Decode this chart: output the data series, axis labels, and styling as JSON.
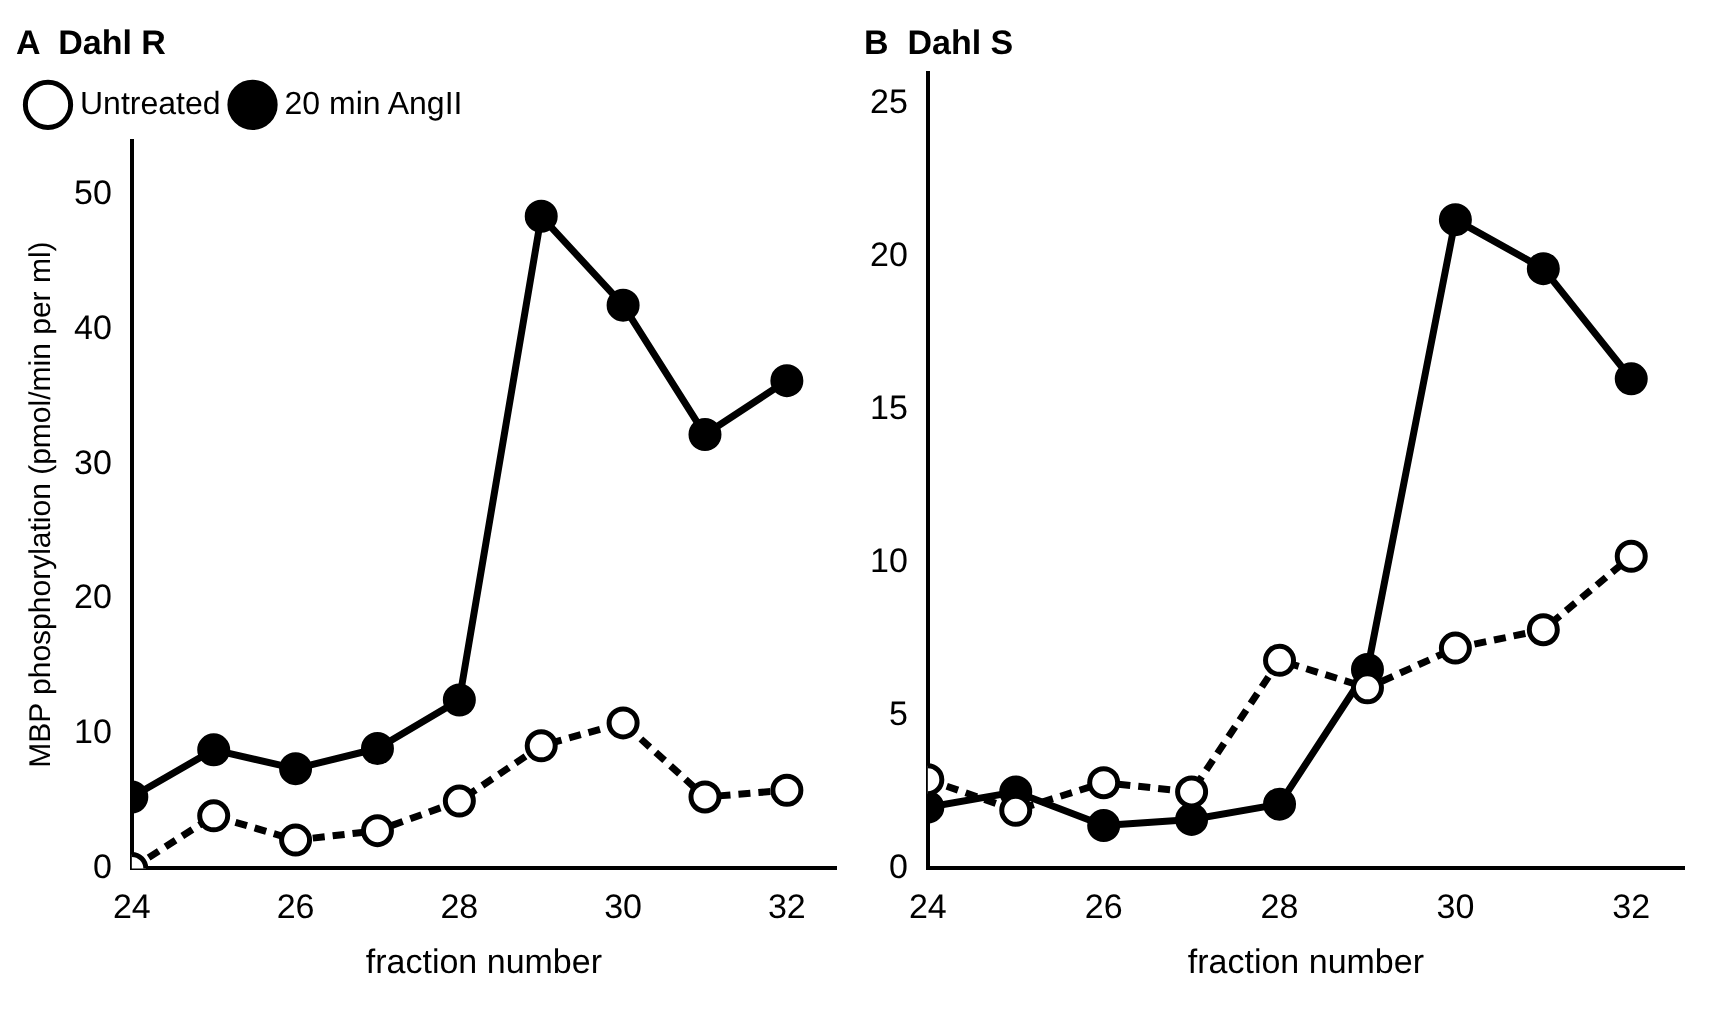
{
  "chart_data": [
    {
      "type": "line",
      "title": "A  Dahl R",
      "xlabel": "fraction number",
      "ylabel": "MBP phosphorylation (pmol/min per ml)",
      "x": [
        24,
        25,
        26,
        27,
        28,
        29,
        30,
        31,
        32
      ],
      "xlim": [
        24,
        32.6
      ],
      "xticks": [
        24,
        26,
        28,
        30,
        32
      ],
      "ylim": [
        0,
        54
      ],
      "yticks": [
        0,
        10,
        20,
        30,
        40,
        50
      ],
      "grid": false,
      "legend": "top left",
      "marker": "circle",
      "series": [
        {
          "name": "Untreated",
          "color": "#000000",
          "line_style": "dashed",
          "values": [
            0,
            3.9,
            2.1,
            2.8,
            5.0,
            9.1,
            10.8,
            5.3,
            5.8
          ]
        },
        {
          "name": "20 min AngII",
          "color": "#000000",
          "line_style": "solid",
          "values": [
            5.3,
            8.8,
            7.4,
            8.9,
            12.5,
            48.4,
            41.8,
            32.2,
            36.2
          ]
        }
      ]
    },
    {
      "type": "line",
      "title": "B  Dahl S",
      "xlabel": "fraction number",
      "x": [
        24,
        25,
        26,
        27,
        28,
        29,
        30,
        31,
        32
      ],
      "xlim": [
        24,
        32.6
      ],
      "xticks": [
        24,
        26,
        28,
        30,
        32
      ],
      "ylim": [
        0,
        26
      ],
      "yticks": [
        0,
        5,
        10,
        15,
        20,
        25
      ],
      "grid": false,
      "legend": false,
      "marker": "circle",
      "series": [
        {
          "color": "#000000",
          "line_style": "dashed",
          "values": [
            2.9,
            1.9,
            2.8,
            2.5,
            6.8,
            5.9,
            7.2,
            7.8,
            10.2
          ]
        },
        {
          "color": "#000000",
          "line_style": "solid",
          "values": [
            2.0,
            2.5,
            1.4,
            1.6,
            2.1,
            6.5,
            21.2,
            19.6,
            16.0
          ]
        }
      ]
    }
  ]
}
